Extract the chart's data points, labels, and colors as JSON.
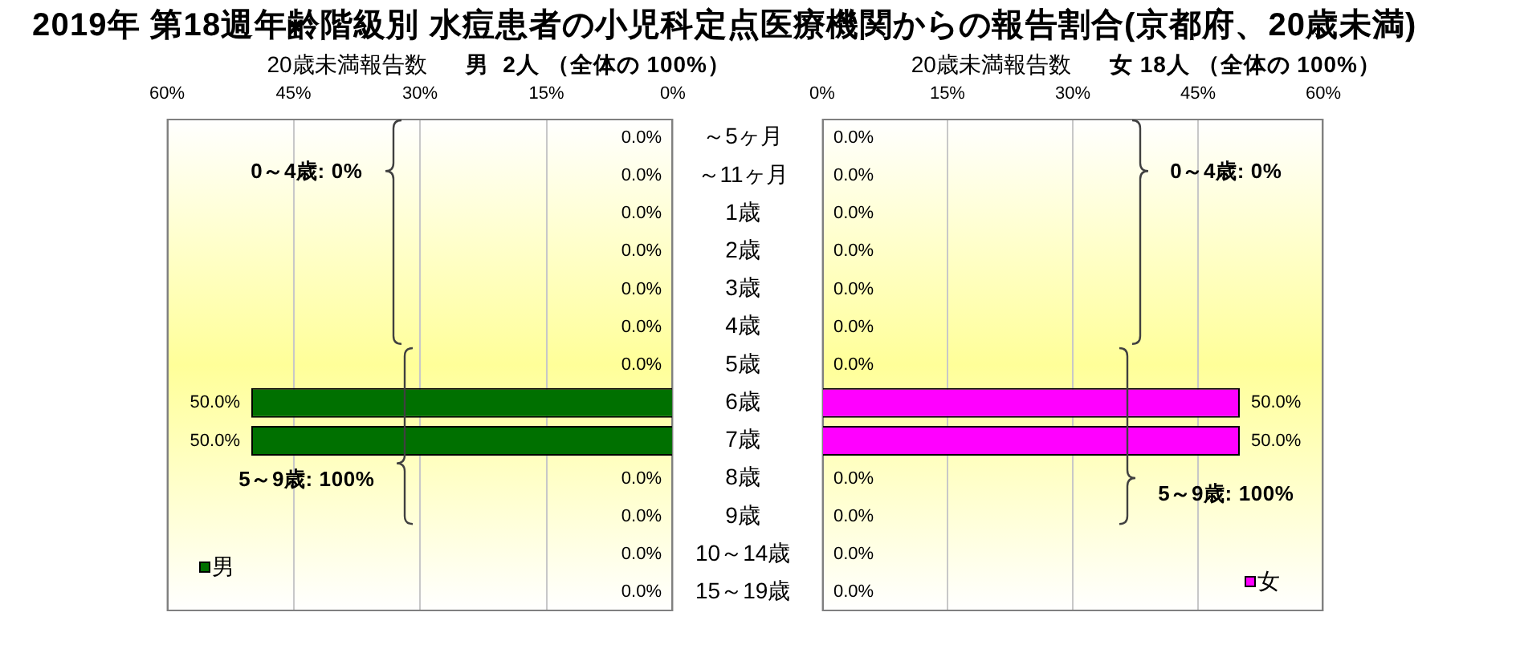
{
  "chart_data": [
    {
      "type": "bar",
      "orientation": "horizontal",
      "title": "2019年 第18週年齢階級別 水痘患者の小児科定点医療機関からの報告割合(京都府、20歳未満)",
      "xlabel": "20歳未満報告数",
      "subtitle": "男  2人 （全体の 100%）",
      "categories": [
        "～5ヶ月",
        "～11ヶ月",
        "1歳",
        "2歳",
        "3歳",
        "4歳",
        "5歳",
        "6歳",
        "7歳",
        "8歳",
        "9歳",
        "10～14歳",
        "15～19歳"
      ],
      "series": [
        {
          "name": "男",
          "color": "#007000",
          "values": [
            0,
            0,
            0,
            0,
            0,
            0,
            0,
            50,
            50,
            0,
            0,
            0,
            0
          ],
          "value_labels": [
            "0.0%",
            "0.0%",
            "0.0%",
            "0.0%",
            "0.0%",
            "0.0%",
            "0.0%",
            "50.0%",
            "50.0%",
            "0.0%",
            "0.0%",
            "0.0%",
            "0.0%"
          ]
        }
      ],
      "xlim": [
        60,
        0
      ],
      "xticks": [
        {
          "value": 60,
          "label": "60%"
        },
        {
          "value": 45,
          "label": "45%"
        },
        {
          "value": 30,
          "label": "30%"
        },
        {
          "value": 15,
          "label": "15%"
        },
        {
          "value": 0,
          "label": "0%"
        }
      ],
      "grid": "x",
      "legend": "bottom left",
      "annotations": [
        "0～4歳: 0%",
        "5～9歳: 100%"
      ]
    },
    {
      "type": "bar",
      "orientation": "horizontal",
      "xlabel": "20歳未満報告数",
      "subtitle": "女 18人 （全体の 100%）",
      "categories": [
        null,
        null,
        null,
        null,
        null,
        null,
        null,
        null,
        null,
        null,
        null,
        null,
        null
      ],
      "series": [
        {
          "name": "女",
          "color": "#ff00ff",
          "values": [
            0,
            0,
            0,
            0,
            0,
            0,
            0,
            50,
            50,
            0,
            0,
            0,
            0
          ],
          "value_labels": [
            "0.0%",
            "0.0%",
            "0.0%",
            "0.0%",
            "0.0%",
            "0.0%",
            "0.0%",
            "50.0%",
            "50.0%",
            "0.0%",
            "0.0%",
            "0.0%",
            "0.0%"
          ]
        }
      ],
      "xlim": [
        0,
        60
      ],
      "xticks": [
        {
          "value": 0,
          "label": "0%"
        },
        {
          "value": 15,
          "label": "15%"
        },
        {
          "value": 30,
          "label": "30%"
        },
        {
          "value": 45,
          "label": "45%"
        },
        {
          "value": 60,
          "label": "60%"
        }
      ],
      "grid": "x",
      "legend": "bottom right",
      "tick_labels": "x",
      "annotations": [
        "0～4歳: 0%",
        "5～9歳: 100%"
      ]
    }
  ]
}
